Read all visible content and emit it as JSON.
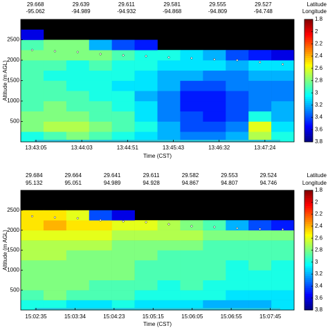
{
  "chart_data": [
    {
      "type": "heatmap",
      "xlabel": "Time (CST)",
      "ylabel": "Altitude (m AGL)",
      "latitude_title": "Latitude",
      "longitude_title": "Longitude",
      "latitude": [
        29.668,
        29.639,
        29.611,
        29.581,
        29.555,
        29.527
      ],
      "longitude": [
        -95.062,
        -94.989,
        -94.932,
        -94.868,
        -94.809,
        -94.748
      ],
      "xticklabels": [
        "13:43:05",
        "13:44:03",
        "13:44:51",
        "13:45:43",
        "13:46:32",
        "13:47:24"
      ],
      "ylim": [
        0,
        3000
      ],
      "yticks": [
        500,
        1000,
        1500,
        2000,
        2500
      ],
      "row_edges": [
        0,
        250,
        500,
        750,
        1000,
        1250,
        1500,
        1750,
        2000,
        2250,
        2500,
        2750,
        3000
      ],
      "colormap": "jet",
      "clim": [
        1.8,
        3.8
      ],
      "reverse_colorbar": true,
      "cticks": [
        1.8,
        2,
        2.2,
        2.4,
        2.6,
        2.8,
        3,
        3.2,
        3.4,
        3.6,
        3.8
      ],
      "values": [
        [
          3.0,
          2.9,
          2.8,
          2.9,
          3.0,
          3.1,
          3.2,
          3.3,
          3.3,
          3.2,
          2.7,
          3.0
        ],
        [
          2.8,
          2.7,
          2.7,
          2.8,
          2.9,
          3.0,
          3.2,
          3.4,
          3.4,
          3.3,
          2.6,
          3.1
        ],
        [
          2.8,
          2.8,
          2.8,
          2.9,
          2.9,
          3.1,
          3.3,
          3.4,
          3.5,
          3.4,
          3.0,
          3.2
        ],
        [
          2.9,
          2.8,
          2.9,
          2.9,
          3.0,
          3.1,
          3.3,
          3.5,
          3.5,
          3.4,
          3.3,
          3.2
        ],
        [
          2.9,
          2.9,
          2.9,
          3.0,
          3.0,
          3.2,
          3.3,
          3.5,
          3.5,
          3.4,
          3.3,
          3.3
        ],
        [
          2.9,
          2.9,
          3.0,
          3.0,
          3.1,
          3.1,
          3.2,
          3.4,
          3.4,
          3.3,
          3.3,
          3.3
        ],
        [
          2.9,
          3.0,
          3.0,
          3.0,
          3.0,
          3.1,
          3.2,
          3.2,
          3.3,
          3.3,
          3.2,
          3.2
        ],
        [
          2.9,
          2.9,
          3.0,
          2.9,
          3.0,
          3.0,
          3.1,
          3.1,
          3.1,
          3.2,
          3.1,
          3.1
        ],
        [
          2.8,
          2.8,
          2.8,
          2.8,
          2.9,
          3.0,
          3.0,
          3.1,
          3.2,
          3.4,
          3.5,
          3.6
        ],
        [
          2.9,
          2.8,
          2.8,
          3.2,
          3.4,
          3.5,
          null,
          null,
          null,
          null,
          null,
          null
        ],
        [
          3.6,
          null,
          null,
          null,
          null,
          null,
          null,
          null,
          null,
          null,
          null,
          null
        ],
        [
          null,
          null,
          null,
          null,
          null,
          null,
          null,
          null,
          null,
          null,
          null,
          null
        ]
      ],
      "dots": [
        2250,
        2220,
        2200,
        2150,
        2120,
        2100,
        2070,
        2050,
        2020,
        2000,
        1950,
        1900
      ],
      "dot_color": "#ffffff"
    },
    {
      "type": "heatmap",
      "xlabel": "Time (CST)",
      "ylabel": "Altitude (m AGL)",
      "latitude_title": "Latitude",
      "longitude_title": "Longitude",
      "latitude": [
        29.684,
        29.664,
        29.641,
        29.611,
        29.582,
        29.553,
        29.524
      ],
      "longitude": [
        95.132,
        95.051,
        94.989,
        94.928,
        94.867,
        94.807,
        94.746
      ],
      "xticklabels": [
        "15:02:35",
        "15:03:34",
        "15:04:23",
        "15:05:15",
        "15:06:05",
        "15:06:55",
        "15:07:45"
      ],
      "ylim": [
        0,
        3000
      ],
      "yticks": [
        500,
        1000,
        1500,
        2000,
        2500
      ],
      "row_edges": [
        0,
        250,
        500,
        750,
        1000,
        1250,
        1500,
        1750,
        2000,
        2250,
        2500,
        2750,
        3000
      ],
      "colormap": "jet",
      "clim": [
        1.8,
        3.8
      ],
      "reverse_colorbar": true,
      "cticks": [
        1.8,
        2,
        2.2,
        2.4,
        2.6,
        2.8,
        3,
        3.2,
        3.4,
        3.6,
        3.8
      ],
      "values": [
        [
          3.0,
          3.0,
          3.1,
          3.1,
          3.0,
          3.1,
          3.1,
          3.1,
          3.2,
          3.2,
          3.2,
          3.1
        ],
        [
          2.9,
          2.8,
          2.9,
          2.9,
          2.9,
          3.0,
          3.0,
          3.0,
          3.0,
          3.1,
          3.1,
          3.1
        ],
        [
          2.8,
          2.8,
          2.8,
          2.9,
          2.9,
          2.9,
          3.0,
          2.9,
          3.0,
          3.0,
          3.0,
          3.0
        ],
        [
          2.8,
          2.8,
          2.8,
          2.8,
          2.8,
          2.9,
          2.9,
          2.9,
          2.9,
          3.0,
          3.0,
          3.0
        ],
        [
          2.8,
          2.8,
          2.8,
          2.8,
          2.8,
          2.9,
          2.9,
          2.9,
          2.9,
          3.0,
          2.9,
          3.0
        ],
        [
          2.7,
          2.7,
          2.8,
          2.8,
          2.8,
          2.8,
          2.9,
          2.9,
          2.9,
          2.9,
          2.9,
          2.9
        ],
        [
          2.7,
          2.7,
          2.7,
          2.7,
          2.8,
          2.8,
          2.8,
          2.8,
          2.9,
          2.9,
          2.9,
          2.9
        ],
        [
          2.6,
          2.6,
          2.6,
          2.6,
          2.7,
          2.7,
          2.7,
          2.7,
          2.8,
          2.8,
          2.8,
          2.8
        ],
        [
          2.5,
          2.4,
          2.5,
          2.5,
          2.6,
          2.6,
          2.7,
          2.8,
          2.9,
          3.2,
          3.4,
          3.5
        ],
        [
          2.5,
          2.5,
          2.6,
          3.4,
          3.6,
          null,
          null,
          null,
          null,
          null,
          null,
          null
        ],
        [
          null,
          null,
          null,
          null,
          null,
          null,
          null,
          null,
          null,
          null,
          null,
          null
        ],
        [
          null,
          null,
          null,
          null,
          null,
          null,
          null,
          null,
          null,
          null,
          null,
          null
        ]
      ],
      "dots": [
        2350,
        2320,
        2300,
        2250,
        2220,
        2200,
        2150,
        2100,
        2080,
        2050,
        2030,
        2020
      ],
      "dot_color": "#ffffff"
    }
  ]
}
